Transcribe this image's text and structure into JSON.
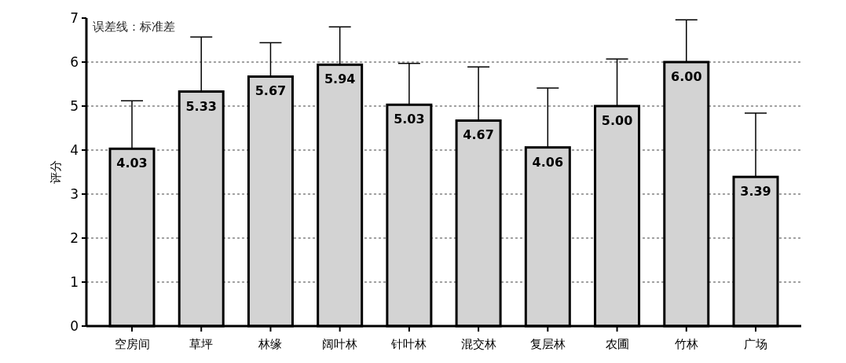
{
  "chart_data": {
    "type": "bar",
    "ylabel": "评分",
    "annotations": [
      "误差线：标准差"
    ],
    "categories": [
      "空房间",
      "草坪",
      "林缘",
      "阔叶林",
      "针叶林",
      "混交林",
      "复层林",
      "农圃",
      "竹林",
      "广场"
    ],
    "values": [
      4.03,
      5.33,
      5.67,
      5.94,
      5.03,
      4.67,
      4.06,
      5.0,
      6.0,
      3.39
    ],
    "value_labels": [
      "4.03",
      "5.33",
      "5.67",
      "5.94",
      "5.03",
      "4.67",
      "4.06",
      "5.00",
      "6.00",
      "3.39"
    ],
    "errors": [
      [
        4.03,
        5.12
      ],
      [
        5.33,
        6.57
      ],
      [
        5.67,
        6.44
      ],
      [
        5.94,
        6.8
      ],
      [
        5.03,
        5.97
      ],
      [
        4.67,
        5.89
      ],
      [
        4.06,
        5.41
      ],
      [
        5.0,
        6.07
      ],
      [
        6.0,
        6.96
      ],
      [
        3.39,
        4.84
      ]
    ],
    "color": "#d3d3d3",
    "ylim": [
      0,
      7
    ],
    "yticks": [
      0,
      1,
      2,
      3,
      4,
      5,
      6,
      7
    ],
    "grid": "y"
  }
}
